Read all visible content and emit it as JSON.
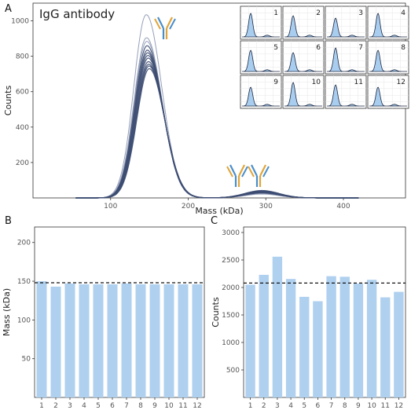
{
  "chart_data": [
    {
      "panel": "A",
      "type": "line",
      "title": "IgG antibody",
      "xlabel": "Mass (kDa)",
      "ylabel": "Counts",
      "xlim": [
        0,
        480
      ],
      "ylim": [
        0,
        1100
      ],
      "xticks": [
        100,
        200,
        300,
        400
      ],
      "yticks": [
        200,
        400,
        600,
        800,
        1000
      ],
      "grid": false,
      "peaks": [
        {
          "center": 148,
          "heights": [
            1035,
            905,
            885,
            860,
            835,
            820,
            805,
            790,
            770,
            755,
            745,
            730
          ]
        },
        {
          "center": 295,
          "heights": [
            22,
            24,
            26,
            28,
            30,
            32,
            34,
            35,
            36,
            38,
            40,
            42
          ]
        }
      ],
      "inset_labels": [
        "1",
        "2",
        "3",
        "4",
        "5",
        "6",
        "7",
        "8",
        "9",
        "10",
        "11",
        "12"
      ],
      "colors": {
        "line": "#3d4d72",
        "inset_fill": "#a9cdee",
        "icon_blue": "#4a8ec9",
        "icon_orange": "#e0a53a"
      }
    },
    {
      "panel": "B",
      "type": "bar",
      "xlabel": "",
      "ylabel": "Mass (kDa)",
      "categories": [
        "1",
        "2",
        "3",
        "4",
        "5",
        "6",
        "7",
        "8",
        "9",
        "10",
        "11",
        "12"
      ],
      "values": [
        150,
        143,
        147,
        146,
        146,
        146,
        147,
        146,
        146,
        146,
        146,
        146
      ],
      "mean_line": 148,
      "ylim": [
        0,
        220
      ],
      "yticks": [
        50,
        100,
        150,
        200
      ],
      "color": "#afd0ef"
    },
    {
      "panel": "C",
      "type": "bar",
      "xlabel": "",
      "ylabel": "Counts",
      "categories": [
        "1",
        "2",
        "3",
        "4",
        "5",
        "6",
        "7",
        "8",
        "9",
        "10",
        "11",
        "12"
      ],
      "values": [
        2050,
        2230,
        2560,
        2155,
        1830,
        1750,
        2205,
        2195,
        2070,
        2140,
        1820,
        1920
      ],
      "mean_line": 2080,
      "ylim": [
        0,
        3100
      ],
      "yticks": [
        500,
        1000,
        1500,
        2000,
        2500,
        3000
      ],
      "color": "#afd0ef"
    }
  ]
}
